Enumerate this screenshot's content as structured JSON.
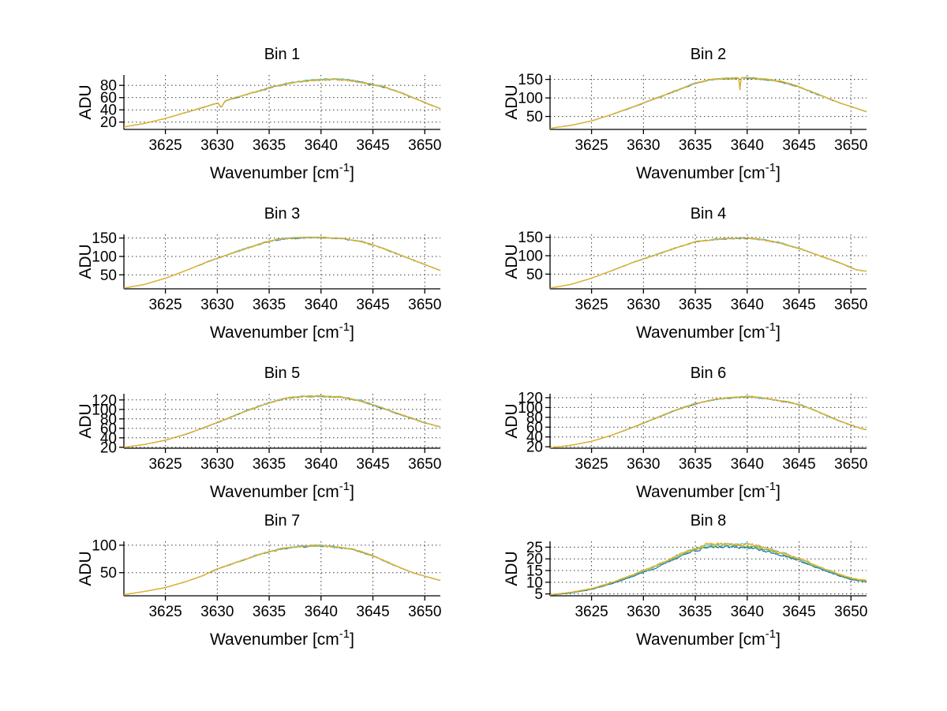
{
  "figure": {
    "background": "#ffffff",
    "n_subplots": 8,
    "grid_layout": "4x2"
  },
  "axes_common": {
    "ylabel": "ADU",
    "xlabel": {
      "text": "Wavenumber [cm",
      "sup": "-1",
      "end": "]"
    },
    "xticks": [
      3625,
      3630,
      3635,
      3640,
      3645,
      3650
    ],
    "xlim": [
      3621,
      3651.5
    ],
    "grid": "on",
    "grid_style": "dotted",
    "grid_color": "#3a3a3a",
    "axis_color": "#000000",
    "series_colors": [
      "#0072BD",
      "#77AC30",
      "#4DBEEE",
      "#EDB120"
    ],
    "series_names": [
      "spectrum-blue",
      "spectrum-green",
      "spectrum-cyan",
      "spectrum-yellow"
    ],
    "default_offsets": [
      -0.006,
      -0.003,
      0.004,
      0
    ]
  },
  "chart_data": [
    {
      "type": "line",
      "title": "Bin 1",
      "yticks": [
        20,
        40,
        60,
        80
      ],
      "ylim": [
        8,
        97
      ],
      "peak": 90,
      "noise": 0.016,
      "anchors": [
        [
          3621,
          12
        ],
        [
          3623,
          18
        ],
        [
          3625,
          26
        ],
        [
          3627,
          36
        ],
        [
          3629,
          46
        ],
        [
          3631,
          56
        ],
        [
          3633,
          66
        ],
        [
          3635,
          76
        ],
        [
          3637,
          84
        ],
        [
          3639,
          88
        ],
        [
          3641,
          90
        ],
        [
          3642.5,
          89
        ],
        [
          3644,
          85
        ],
        [
          3646,
          78
        ],
        [
          3648,
          66
        ],
        [
          3650,
          52
        ],
        [
          3651.5,
          42
        ]
      ],
      "dip": {
        "x": 3630.4,
        "depth": 8,
        "width": 0.22
      }
    },
    {
      "type": "line",
      "title": "Bin 2",
      "yticks": [
        50,
        100,
        150
      ],
      "ylim": [
        15,
        162
      ],
      "peak": 154,
      "noise": 0.013,
      "anchors": [
        [
          3621,
          18
        ],
        [
          3623,
          26
        ],
        [
          3625,
          38
        ],
        [
          3627,
          56
        ],
        [
          3629,
          76
        ],
        [
          3631,
          97
        ],
        [
          3633,
          118
        ],
        [
          3635,
          140
        ],
        [
          3636.5,
          150
        ],
        [
          3638,
          153
        ],
        [
          3640,
          154
        ],
        [
          3642,
          150
        ],
        [
          3643.5,
          143
        ],
        [
          3645,
          130
        ],
        [
          3647,
          108
        ],
        [
          3649,
          86
        ],
        [
          3651.5,
          63
        ]
      ],
      "spike": {
        "x": 3639.3,
        "depth": 30,
        "width": 0.07
      }
    },
    {
      "type": "line",
      "title": "Bin 3",
      "yticks": [
        50,
        100,
        150
      ],
      "ylim": [
        12,
        160
      ],
      "peak": 152,
      "noise": 0.012,
      "anchors": [
        [
          3621,
          14
        ],
        [
          3623,
          24
        ],
        [
          3625,
          41
        ],
        [
          3627,
          62
        ],
        [
          3629,
          85
        ],
        [
          3631,
          105
        ],
        [
          3633,
          124
        ],
        [
          3635,
          142
        ],
        [
          3636.5,
          149
        ],
        [
          3638,
          151
        ],
        [
          3640,
          152
        ],
        [
          3642,
          149
        ],
        [
          3644,
          140
        ],
        [
          3646,
          122
        ],
        [
          3648,
          100
        ],
        [
          3650,
          78
        ],
        [
          3651.5,
          62
        ]
      ]
    },
    {
      "type": "line",
      "title": "Bin 4",
      "yticks": [
        50,
        100,
        150
      ],
      "ylim": [
        10,
        158
      ],
      "peak": 148,
      "noise": 0.012,
      "anchors": [
        [
          3621,
          12
        ],
        [
          3623,
          22
        ],
        [
          3625,
          39
        ],
        [
          3627,
          60
        ],
        [
          3629,
          82
        ],
        [
          3631,
          101
        ],
        [
          3633,
          120
        ],
        [
          3635,
          138
        ],
        [
          3637,
          145
        ],
        [
          3638.5,
          147
        ],
        [
          3640,
          148
        ],
        [
          3641.5,
          144
        ],
        [
          3643,
          136
        ],
        [
          3645,
          120
        ],
        [
          3647,
          100
        ],
        [
          3649,
          80
        ],
        [
          3650.5,
          62
        ],
        [
          3651.5,
          58
        ]
      ]
    },
    {
      "type": "line",
      "title": "Bin 5",
      "yticks": [
        20,
        40,
        60,
        80,
        100,
        120
      ],
      "ylim": [
        18,
        133
      ],
      "peak": 128,
      "noise": 0.012,
      "anchors": [
        [
          3621,
          20
        ],
        [
          3623,
          26
        ],
        [
          3625,
          35
        ],
        [
          3627,
          48
        ],
        [
          3629,
          64
        ],
        [
          3631,
          81
        ],
        [
          3633,
          99
        ],
        [
          3635,
          114
        ],
        [
          3636.5,
          123
        ],
        [
          3638,
          127
        ],
        [
          3640,
          128
        ],
        [
          3642,
          126
        ],
        [
          3644,
          117
        ],
        [
          3646,
          102
        ],
        [
          3648,
          87
        ],
        [
          3650,
          72
        ],
        [
          3651.5,
          63
        ]
      ]
    },
    {
      "type": "line",
      "title": "Bin 6",
      "yticks": [
        20,
        40,
        60,
        80,
        100,
        120
      ],
      "ylim": [
        17,
        128
      ],
      "peak": 122,
      "noise": 0.01,
      "anchors": [
        [
          3621,
          18
        ],
        [
          3623,
          23
        ],
        [
          3625,
          31
        ],
        [
          3627,
          44
        ],
        [
          3629,
          60
        ],
        [
          3631,
          77
        ],
        [
          3633,
          94
        ],
        [
          3635,
          108
        ],
        [
          3637,
          117
        ],
        [
          3639,
          121
        ],
        [
          3640.5,
          122
        ],
        [
          3642,
          118
        ],
        [
          3644,
          111
        ],
        [
          3645.5,
          103
        ],
        [
          3647,
          90
        ],
        [
          3649,
          72
        ],
        [
          3651,
          57
        ],
        [
          3651.5,
          55
        ]
      ]
    },
    {
      "type": "line",
      "title": "Bin 7",
      "yticks": [
        50,
        100
      ],
      "ylim": [
        8,
        107
      ],
      "peak": 100,
      "noise": 0.014,
      "anchors": [
        [
          3621,
          10
        ],
        [
          3623,
          16
        ],
        [
          3625,
          23
        ],
        [
          3627,
          34
        ],
        [
          3628.5,
          44
        ],
        [
          3630,
          57
        ],
        [
          3632,
          70
        ],
        [
          3634,
          83
        ],
        [
          3636,
          93
        ],
        [
          3638,
          98
        ],
        [
          3639.5,
          100
        ],
        [
          3641,
          98
        ],
        [
          3643,
          93
        ],
        [
          3645,
          81
        ],
        [
          3647,
          64
        ],
        [
          3649,
          49
        ],
        [
          3651.5,
          36
        ]
      ]
    },
    {
      "type": "line",
      "title": "Bin 8",
      "yticks": [
        5,
        10,
        15,
        20,
        25
      ],
      "ylim": [
        4.2,
        27.5
      ],
      "peak": 26,
      "noise": 0.025,
      "anchors": [
        [
          3621,
          4.6
        ],
        [
          3623,
          5.6
        ],
        [
          3625,
          7.2
        ],
        [
          3627,
          9.8
        ],
        [
          3629,
          13
        ],
        [
          3631,
          16.5
        ],
        [
          3633,
          20.5
        ],
        [
          3634.5,
          23.5
        ],
        [
          3636,
          25.5
        ],
        [
          3637.5,
          26
        ],
        [
          3639,
          25.8
        ],
        [
          3640.5,
          25.6
        ],
        [
          3642,
          24
        ],
        [
          3643.5,
          22
        ],
        [
          3645,
          20
        ],
        [
          3646.5,
          17
        ],
        [
          3648,
          14.5
        ],
        [
          3650,
          11.5
        ],
        [
          3651.5,
          10.5
        ]
      ],
      "offsets": [
        -0.035,
        -0.012,
        0.012,
        0.02
      ]
    }
  ]
}
